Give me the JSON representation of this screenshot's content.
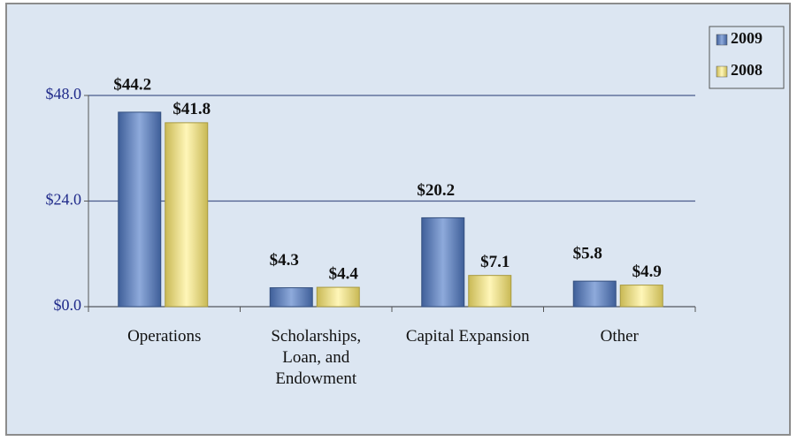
{
  "chart_data": {
    "type": "bar",
    "categories": [
      "Operations",
      "Scholarships, Loan, and Endowment",
      "Capital Expansion",
      "Other"
    ],
    "series": [
      {
        "name": "2009",
        "color": "#6b8cc6",
        "values": [
          44.2,
          4.3,
          20.2,
          5.8
        ],
        "value_labels": [
          "$44.2",
          "$4.3",
          "$20.2",
          "$5.8"
        ]
      },
      {
        "name": "2008",
        "color": "#f3e58e",
        "values": [
          41.8,
          4.4,
          7.1,
          4.9
        ],
        "value_labels": [
          "$41.8",
          "$4.4",
          "$7.1",
          "$4.9"
        ]
      }
    ],
    "ylim": [
      0,
      48
    ],
    "yticks": [
      {
        "value": 0,
        "label": "$0.0"
      },
      {
        "value": 24,
        "label": "$24.0"
      },
      {
        "value": 48,
        "label": "$48.0"
      }
    ],
    "grid": true,
    "legend": "top-right"
  }
}
